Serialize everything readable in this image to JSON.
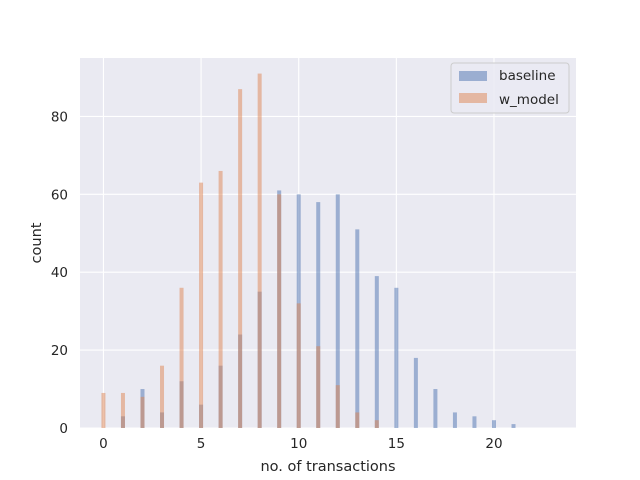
{
  "chart_data": {
    "type": "bar",
    "xlabel": "no. of transactions",
    "ylabel": "count",
    "xlim": [
      -1.2,
      24.2
    ],
    "ylim": [
      0,
      95
    ],
    "xticks": [
      0,
      5,
      10,
      15,
      20
    ],
    "yticks": [
      0,
      20,
      40,
      60,
      80
    ],
    "grid": true,
    "legend_position": "top-right",
    "colors": {
      "baseline": "#4c72b0",
      "w_model": "#dd8452",
      "plot_bg": "#eaeaf2",
      "grid": "#ffffff"
    },
    "series": [
      {
        "name": "baseline",
        "x": [
          1,
          2,
          3,
          4,
          5,
          6,
          7,
          8,
          9,
          10,
          11,
          12,
          13,
          14,
          15,
          16,
          17,
          18,
          19,
          20,
          21
        ],
        "values": [
          3,
          10,
          4,
          12,
          6,
          16,
          24,
          35,
          61,
          60,
          58,
          60,
          51,
          39,
          36,
          18,
          10,
          4,
          3,
          2,
          1
        ]
      },
      {
        "name": "w_model",
        "x": [
          0,
          1,
          2,
          3,
          4,
          5,
          6,
          7,
          8,
          9,
          10,
          11,
          12,
          13,
          14
        ],
        "values": [
          9,
          9,
          8,
          16,
          36,
          63,
          66,
          87,
          91,
          60,
          32,
          21,
          11,
          4,
          2
        ]
      }
    ]
  }
}
